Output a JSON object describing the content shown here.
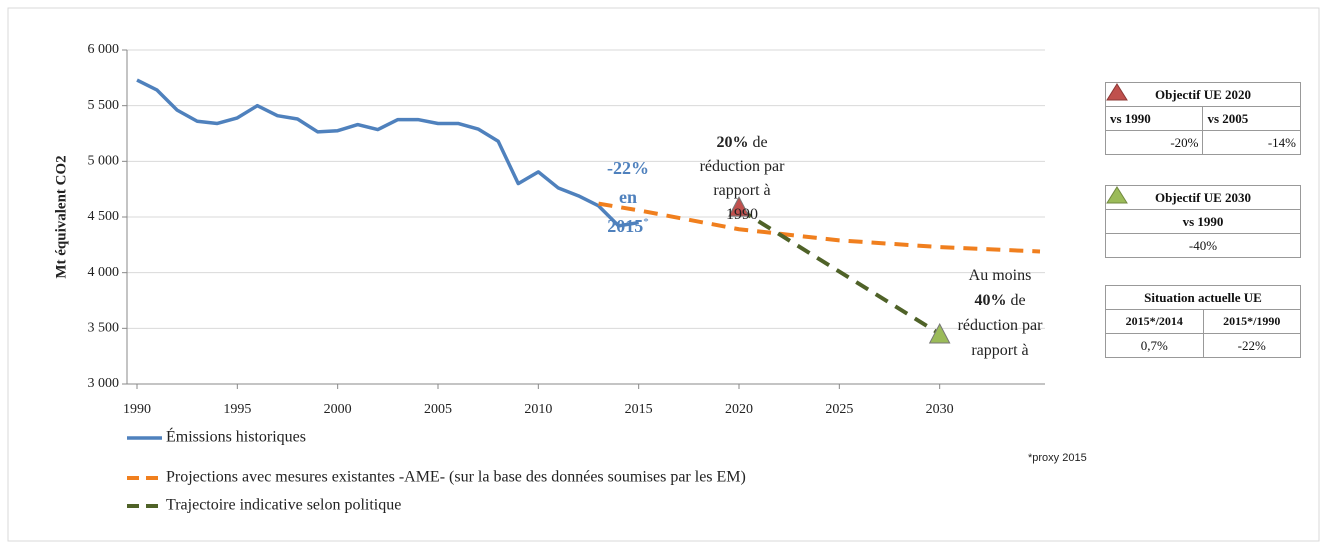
{
  "chart_data": {
    "type": "line",
    "y_label": "Mt équivalent CO2",
    "xlim": [
      1990,
      2035
    ],
    "xticks": [
      1990,
      1995,
      2000,
      2005,
      2010,
      2015,
      2020,
      2025,
      2030
    ],
    "ylim": [
      3000,
      6000
    ],
    "yticks": [
      {
        "value": 3000,
        "label": "3 000"
      },
      {
        "value": 3500,
        "label": "3 500"
      },
      {
        "value": 4000,
        "label": "4 000"
      },
      {
        "value": 4500,
        "label": "4 500"
      },
      {
        "value": 5000,
        "label": "5 000"
      },
      {
        "value": 5500,
        "label": "5 500"
      },
      {
        "value": 6000,
        "label": "6 000"
      }
    ],
    "grid": true,
    "series": [
      {
        "name": "Émissions historiques",
        "color": "#4f81bd",
        "dash": false,
        "x": [
          1990,
          1991,
          1992,
          1993,
          1994,
          1995,
          1996,
          1997,
          1998,
          1999,
          2000,
          2001,
          2002,
          2003,
          2004,
          2005,
          2006,
          2007,
          2008,
          2009,
          2010,
          2011,
          2012,
          2013,
          2014,
          2015
        ],
        "values": [
          5730,
          5640,
          5460,
          5360,
          5340,
          5390,
          5500,
          5410,
          5380,
          5265,
          5275,
          5330,
          5285,
          5375,
          5375,
          5340,
          5340,
          5290,
          5180,
          4800,
          4905,
          4760,
          4690,
          4600,
          4420,
          4450
        ]
      },
      {
        "name": "Projections avec mesures existantes -AME- (sur la base des données soumises par les EM)",
        "color": "#f07f1e",
        "dash": true,
        "x": [
          2013,
          2015,
          2020,
          2025,
          2030,
          2035
        ],
        "values": [
          4620,
          4560,
          4390,
          4290,
          4230,
          4190
        ]
      },
      {
        "name": "Trajectoire indicative selon politique",
        "color": "#4f6228",
        "dash": true,
        "x": [
          2020,
          2030
        ],
        "values": [
          4570,
          3450
        ]
      }
    ],
    "markers": [
      {
        "x": 2020,
        "y": 4580,
        "color": "#c0504d"
      },
      {
        "x": 2030,
        "y": 3440,
        "color": "#9bbb59"
      }
    ],
    "annotations": [
      {
        "color": "#4f81bd",
        "lines": [
          [
            {
              "text": "-22%",
              "bold": true
            }
          ],
          [
            {
              "text": "en",
              "bold": true
            }
          ],
          [
            {
              "text": "2015",
              "bold": true
            },
            {
              "text": "*",
              "sup": true
            }
          ]
        ]
      },
      {
        "color": "#222",
        "lines": [
          [
            {
              "text": "20%",
              "bold": true
            },
            {
              "text": " de"
            }
          ],
          [
            {
              "text": "réduction par"
            }
          ],
          [
            {
              "text": "rapport à"
            }
          ],
          [
            {
              "text": "1990"
            }
          ]
        ]
      },
      {
        "color": "#222",
        "lines": [
          [
            {
              "text": "Au moins"
            }
          ],
          [
            {
              "text": "40%",
              "bold": true
            },
            {
              "text": " de"
            }
          ],
          [
            {
              "text": "réduction par"
            }
          ],
          [
            {
              "text": "rapport à"
            }
          ]
        ]
      }
    ],
    "footnote": "*proxy 2015"
  },
  "tables": [
    {
      "title": "Objectif UE 2020",
      "header": [
        "vs 1990",
        "vs 2005"
      ],
      "row": [
        "-20%",
        "-14%"
      ]
    },
    {
      "title": "Objectif UE 2030",
      "header": [
        "vs 1990"
      ],
      "row": [
        "-40%"
      ]
    },
    {
      "title": "Situation actuelle UE",
      "header": [
        "2015*/2014",
        "2015*/1990"
      ],
      "row": [
        "0,7%",
        "-22%"
      ]
    }
  ]
}
